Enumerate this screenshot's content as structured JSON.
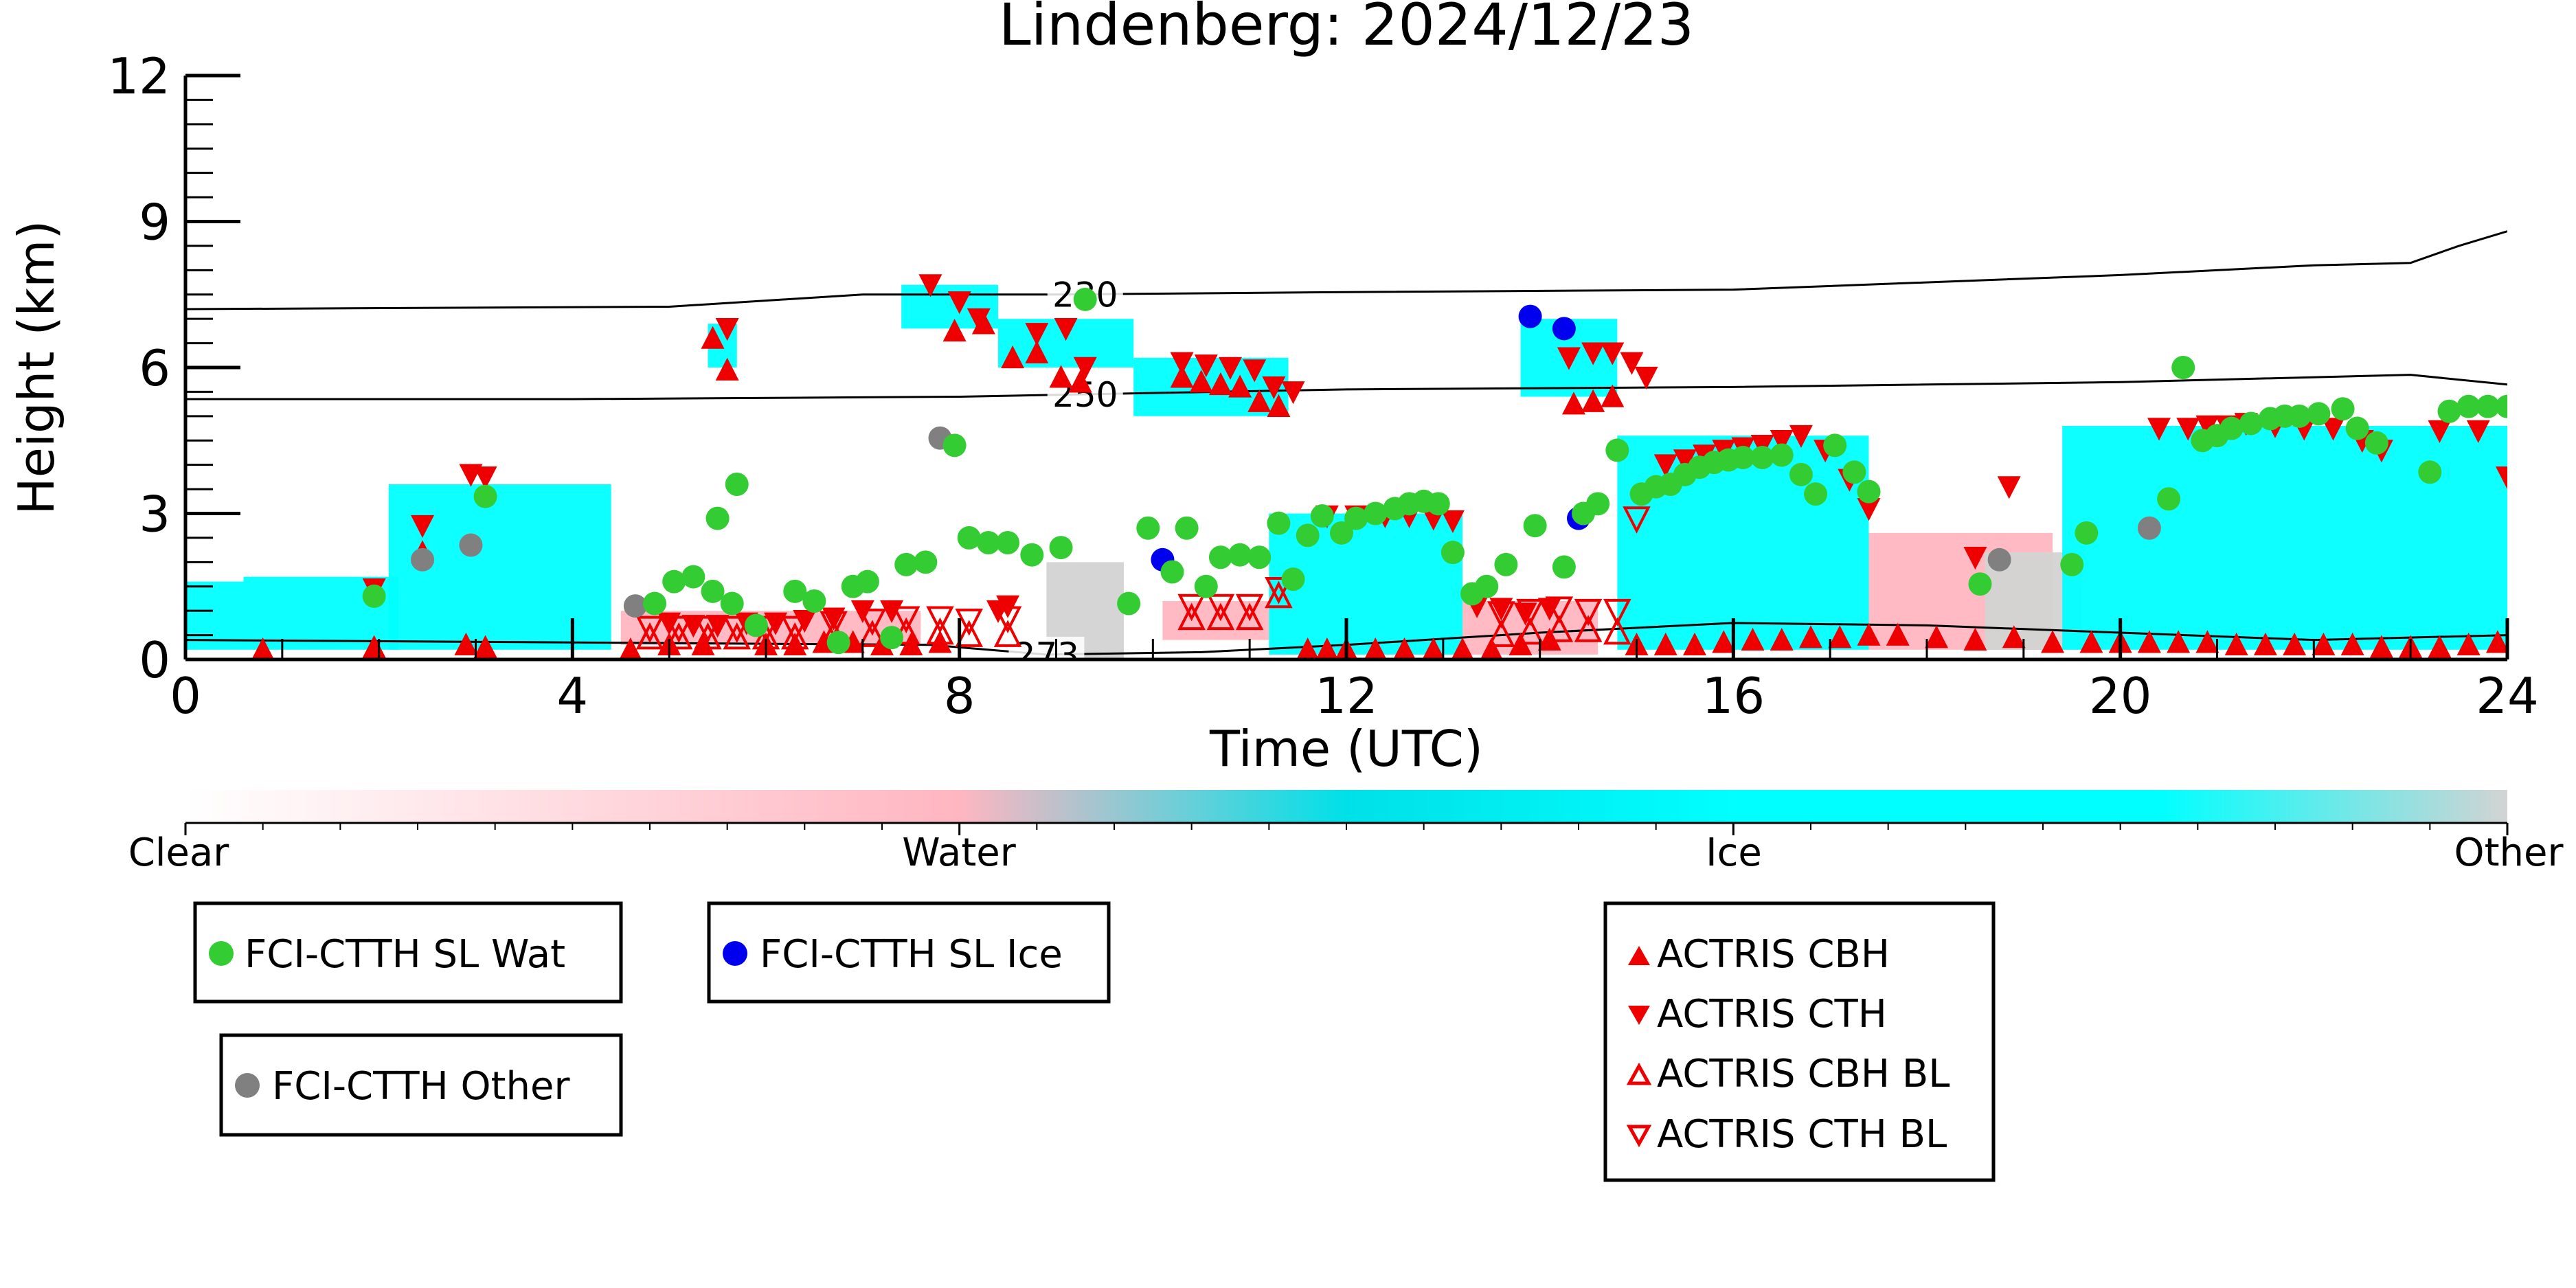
{
  "chart_data": {
    "type": "scatter",
    "title": "Lindenberg: 2024/12/23",
    "xlabel": "Time (UTC)",
    "ylabel": "Height (km)",
    "xlim": [
      0,
      24
    ],
    "ylim": [
      0,
      12
    ],
    "xticks": [
      0,
      4,
      8,
      12,
      16,
      20,
      24
    ],
    "yticks": [
      0,
      3,
      6,
      9,
      12
    ],
    "grid": false,
    "colorbar": {
      "labels": [
        "Clear",
        "Water",
        "Ice",
        "Other"
      ],
      "colors": [
        "#ffffff",
        "#ffb6c1",
        "#00ffff",
        "#d3d3d3"
      ]
    },
    "background_classification": [
      {
        "class": "Ice",
        "x0": 0.0,
        "x1": 0.6,
        "y0": 0.2,
        "y1": 1.6
      },
      {
        "class": "Ice",
        "x0": 0.6,
        "x1": 2.2,
        "y0": 0.2,
        "y1": 1.7
      },
      {
        "class": "Ice",
        "x0": 2.1,
        "x1": 4.4,
        "y0": 0.2,
        "y1": 3.6
      },
      {
        "class": "Water",
        "x0": 4.5,
        "x1": 7.6,
        "y0": 0.3,
        "y1": 1.0
      },
      {
        "class": "Ice",
        "x0": 5.4,
        "x1": 5.7,
        "y0": 6.0,
        "y1": 6.9
      },
      {
        "class": "Ice",
        "x0": 7.4,
        "x1": 8.4,
        "y0": 6.8,
        "y1": 7.7
      },
      {
        "class": "Ice",
        "x0": 8.4,
        "x1": 9.8,
        "y0": 6.0,
        "y1": 7.0
      },
      {
        "class": "Ice",
        "x0": 9.8,
        "x1": 11.4,
        "y0": 5.0,
        "y1": 6.2
      },
      {
        "class": "Other",
        "x0": 8.9,
        "x1": 9.7,
        "y0": 0.0,
        "y1": 2.0
      },
      {
        "class": "Water",
        "x0": 10.1,
        "x1": 11.2,
        "y0": 0.4,
        "y1": 1.2
      },
      {
        "class": "Ice",
        "x0": 11.2,
        "x1": 13.2,
        "y0": 0.1,
        "y1": 3.0
      },
      {
        "class": "Water",
        "x0": 13.2,
        "x1": 14.6,
        "y0": 0.1,
        "y1": 1.2
      },
      {
        "class": "Ice",
        "x0": 13.8,
        "x1": 14.8,
        "y0": 5.4,
        "y1": 7.0
      },
      {
        "class": "Ice",
        "x0": 14.8,
        "x1": 17.4,
        "y0": 0.2,
        "y1": 4.6
      },
      {
        "class": "Water",
        "x0": 17.4,
        "x1": 19.3,
        "y0": 0.2,
        "y1": 2.6
      },
      {
        "class": "Other",
        "x0": 18.6,
        "x1": 19.6,
        "y0": 0.2,
        "y1": 2.2
      },
      {
        "class": "Ice",
        "x0": 19.4,
        "x1": 24.0,
        "y0": 0.2,
        "y1": 4.8
      }
    ],
    "contours": [
      {
        "label": "230",
        "label_x": 9.3,
        "x": [
          0,
          5,
          7,
          9,
          12,
          16,
          20,
          22,
          23,
          23.5,
          24
        ],
        "y": [
          7.2,
          7.25,
          7.5,
          7.5,
          7.55,
          7.6,
          7.9,
          8.1,
          8.15,
          8.5,
          8.8
        ]
      },
      {
        "label": "250",
        "label_x": 9.3,
        "x": [
          0,
          4,
          8,
          9.3,
          12,
          16,
          20,
          23,
          24
        ],
        "y": [
          5.35,
          5.35,
          5.4,
          5.45,
          5.55,
          5.6,
          5.7,
          5.85,
          5.65
        ]
      },
      {
        "label": "273",
        "label_x": 8.9,
        "x": [
          0,
          4,
          7.7,
          8.9,
          10.5,
          12,
          14,
          16,
          18,
          20,
          22,
          24
        ],
        "y": [
          0.4,
          0.35,
          0.3,
          0.1,
          0.15,
          0.3,
          0.55,
          0.75,
          0.7,
          0.55,
          0.4,
          0.5
        ]
      }
    ],
    "series": [
      {
        "name": "FCI-CTTH SL Wat",
        "marker": "circle",
        "color": "#33cc33",
        "x": [
          1.95,
          3.1,
          4.85,
          5.05,
          5.25,
          5.45,
          5.65,
          5.5,
          5.7,
          5.9,
          6.3,
          6.5,
          6.75,
          6.9,
          7.05,
          7.3,
          7.45,
          7.65,
          7.95,
          8.1,
          8.3,
          8.5,
          8.75,
          9.05,
          9.3,
          9.75,
          9.95,
          10.2,
          10.35,
          10.55,
          10.7,
          10.9,
          11.1,
          11.3,
          11.45,
          11.6,
          11.75,
          11.95,
          12.1,
          12.3,
          12.5,
          12.65,
          12.8,
          12.95,
          13.1,
          13.3,
          13.45,
          13.65,
          13.95,
          14.25,
          14.45,
          14.6,
          14.8,
          15.05,
          15.2,
          15.35,
          15.5,
          15.65,
          15.8,
          15.95,
          16.1,
          16.3,
          16.5,
          16.7,
          16.85,
          17.05,
          17.25,
          17.4,
          18.55,
          19.5,
          19.65,
          20.5,
          20.65,
          20.85,
          21.0,
          21.15,
          21.35,
          21.55,
          21.7,
          21.85,
          22.05,
          22.3,
          22.45,
          22.65,
          23.2,
          23.4,
          23.6,
          23.8,
          24.0
        ],
        "y": [
          1.3,
          3.35,
          1.15,
          1.6,
          1.7,
          1.4,
          1.15,
          2.9,
          3.6,
          0.7,
          1.4,
          1.2,
          0.35,
          1.5,
          1.6,
          0.45,
          1.95,
          2.0,
          4.4,
          2.5,
          2.4,
          2.4,
          2.15,
          2.3,
          7.4,
          1.15,
          2.7,
          1.8,
          2.7,
          1.5,
          2.1,
          2.15,
          2.1,
          2.8,
          1.65,
          2.55,
          2.95,
          2.6,
          2.9,
          3.0,
          3.1,
          3.2,
          3.25,
          3.2,
          2.2,
          1.35,
          1.5,
          1.95,
          2.75,
          1.9,
          3.0,
          3.2,
          4.3,
          3.4,
          3.55,
          3.6,
          3.8,
          3.95,
          4.05,
          4.1,
          4.15,
          4.15,
          4.2,
          3.8,
          3.4,
          4.4,
          3.85,
          3.45,
          1.55,
          1.95,
          2.6,
          3.3,
          6.0,
          4.5,
          4.6,
          4.75,
          4.85,
          4.95,
          5.0,
          5.0,
          5.05,
          5.15,
          4.75,
          4.45,
          3.85,
          5.1,
          5.2,
          5.2,
          5.2
        ]
      },
      {
        "name": "FCI-CTTH SL Ice",
        "marker": "circle",
        "color": "#0000ee",
        "x": [
          10.1,
          13.9,
          14.25,
          14.4
        ],
        "y": [
          2.05,
          7.05,
          6.8,
          2.9
        ]
      },
      {
        "name": "FCI-CTTH Other",
        "marker": "circle",
        "color": "#808080",
        "x": [
          2.45,
          2.95,
          4.65,
          7.8,
          18.75,
          20.3
        ],
        "y": [
          2.05,
          2.35,
          1.1,
          4.55,
          2.05,
          2.7
        ]
      },
      {
        "name": "ACTRIS CBH",
        "marker": "triangle-up",
        "color": "#ee0000",
        "x": [
          0.8,
          1.95,
          2.45,
          2.9,
          3.1,
          4.6,
          5.0,
          5.35,
          5.45,
          5.6,
          6.0,
          6.3,
          6.6,
          6.9,
          7.2,
          7.5,
          7.8,
          7.95,
          8.25,
          8.55,
          8.8,
          9.05,
          9.25,
          10.3,
          10.5,
          10.7,
          10.9,
          11.1,
          11.3,
          11.6,
          11.8,
          12.0,
          12.3,
          12.6,
          12.9,
          13.2,
          13.5,
          13.8,
          14.1,
          14.35,
          14.55,
          14.75,
          15.0,
          15.3,
          15.6,
          15.9,
          16.2,
          16.5,
          16.8,
          17.1,
          17.4,
          17.7,
          18.1,
          18.5,
          18.9,
          19.3,
          19.7,
          20.0,
          20.3,
          20.6,
          20.9,
          21.2,
          21.5,
          21.8,
          22.1,
          22.4,
          22.7,
          23.0,
          23.3,
          23.6,
          23.9
        ],
        "y": [
          0.2,
          0.25,
          2.2,
          0.3,
          0.25,
          0.2,
          0.3,
          0.3,
          6.6,
          5.95,
          0.3,
          0.3,
          0.35,
          0.35,
          0.3,
          0.3,
          0.35,
          6.75,
          6.9,
          6.2,
          6.3,
          5.8,
          5.7,
          5.8,
          5.7,
          5.65,
          5.6,
          5.3,
          5.2,
          0.2,
          0.2,
          0.2,
          0.2,
          0.2,
          0.2,
          0.2,
          0.2,
          0.3,
          0.4,
          5.25,
          5.3,
          5.4,
          0.3,
          0.3,
          0.3,
          0.35,
          0.4,
          0.4,
          0.45,
          0.45,
          0.5,
          0.5,
          0.45,
          0.4,
          0.45,
          0.35,
          0.35,
          0.35,
          0.35,
          0.35,
          0.35,
          0.3,
          0.3,
          0.3,
          0.3,
          0.3,
          0.25,
          0.25,
          0.25,
          0.3,
          0.35
        ]
      },
      {
        "name": "ACTRIS CTH",
        "marker": "triangle-down",
        "color": "#ee0000",
        "x": [
          1.95,
          2.45,
          2.95,
          3.1,
          5.0,
          5.25,
          5.5,
          5.6,
          5.8,
          6.1,
          6.4,
          6.7,
          7.0,
          7.3,
          7.7,
          8.0,
          8.2,
          8.4,
          8.5,
          8.8,
          9.1,
          9.3,
          10.3,
          10.55,
          10.8,
          11.05,
          11.25,
          11.45,
          11.8,
          12.1,
          12.4,
          12.65,
          12.9,
          13.1,
          13.35,
          13.6,
          13.85,
          14.1,
          14.3,
          14.55,
          14.75,
          14.95,
          15.1,
          15.3,
          15.5,
          15.7,
          15.9,
          16.1,
          16.3,
          16.5,
          16.7,
          16.95,
          17.2,
          17.4,
          18.5,
          18.85,
          20.4,
          20.7,
          20.9,
          21.1,
          21.3,
          21.6,
          21.9,
          22.2,
          22.5,
          22.7,
          23.3,
          23.7,
          24.0
        ],
        "y": [
          1.45,
          2.75,
          3.8,
          3.75,
          0.75,
          0.7,
          0.7,
          6.8,
          0.75,
          0.75,
          0.8,
          0.85,
          1.0,
          1.0,
          7.7,
          7.35,
          7.0,
          1.0,
          1.1,
          6.7,
          6.8,
          6.0,
          6.1,
          6.05,
          6.0,
          5.95,
          5.6,
          5.5,
          2.95,
          2.95,
          2.95,
          2.95,
          2.9,
          2.85,
          1.1,
          1.05,
          0.95,
          1.05,
          6.2,
          6.3,
          6.3,
          6.1,
          5.8,
          4.0,
          4.1,
          4.2,
          4.3,
          4.35,
          4.4,
          4.5,
          4.6,
          4.3,
          3.7,
          3.1,
          2.1,
          3.55,
          4.75,
          4.75,
          4.8,
          4.8,
          4.85,
          4.8,
          4.75,
          4.75,
          4.5,
          4.3,
          4.7,
          4.7,
          3.75
        ]
      },
      {
        "name": "ACTRIS CBH BL",
        "marker": "triangle-up-open",
        "color": "#ee0000",
        "x": [
          4.8,
          5.1,
          5.4,
          5.7,
          6.0,
          6.3,
          6.7,
          7.1,
          7.45,
          7.8,
          8.1,
          8.5,
          10.4,
          10.7,
          11.0,
          11.3,
          13.6,
          13.9,
          14.2,
          14.5,
          14.8
        ],
        "y": [
          0.45,
          0.45,
          0.45,
          0.45,
          0.45,
          0.45,
          0.5,
          0.5,
          0.55,
          0.55,
          0.5,
          0.5,
          0.85,
          0.85,
          0.85,
          1.3,
          0.5,
          0.55,
          0.6,
          0.6,
          0.55
        ]
      },
      {
        "name": "ACTRIS CTH BL",
        "marker": "triangle-down-open",
        "color": "#ee0000",
        "x": [
          4.8,
          5.1,
          5.4,
          5.7,
          6.0,
          6.3,
          6.7,
          7.1,
          7.45,
          7.8,
          8.1,
          8.5,
          10.4,
          10.7,
          11.0,
          11.3,
          13.6,
          13.9,
          14.2,
          14.5,
          14.8,
          15.0
        ],
        "y": [
          0.65,
          0.65,
          0.65,
          0.65,
          0.65,
          0.65,
          0.75,
          0.8,
          0.85,
          0.85,
          0.8,
          0.85,
          1.1,
          1.1,
          1.1,
          1.45,
          0.95,
          1.0,
          1.05,
          1.0,
          1.0,
          2.9
        ]
      }
    ],
    "legends": [
      {
        "placement": "below-left",
        "entries": [
          "FCI-CTTH SL Wat"
        ]
      },
      {
        "placement": "below-left",
        "entries": [
          "FCI-CTTH Other"
        ]
      },
      {
        "placement": "below-center-left",
        "entries": [
          "FCI-CTTH SL Ice"
        ]
      },
      {
        "placement": "below-center-right",
        "entries": [
          "ACTRIS CBH",
          "ACTRIS CTH",
          "ACTRIS CBH BL",
          "ACTRIS CTH BL"
        ]
      }
    ]
  }
}
